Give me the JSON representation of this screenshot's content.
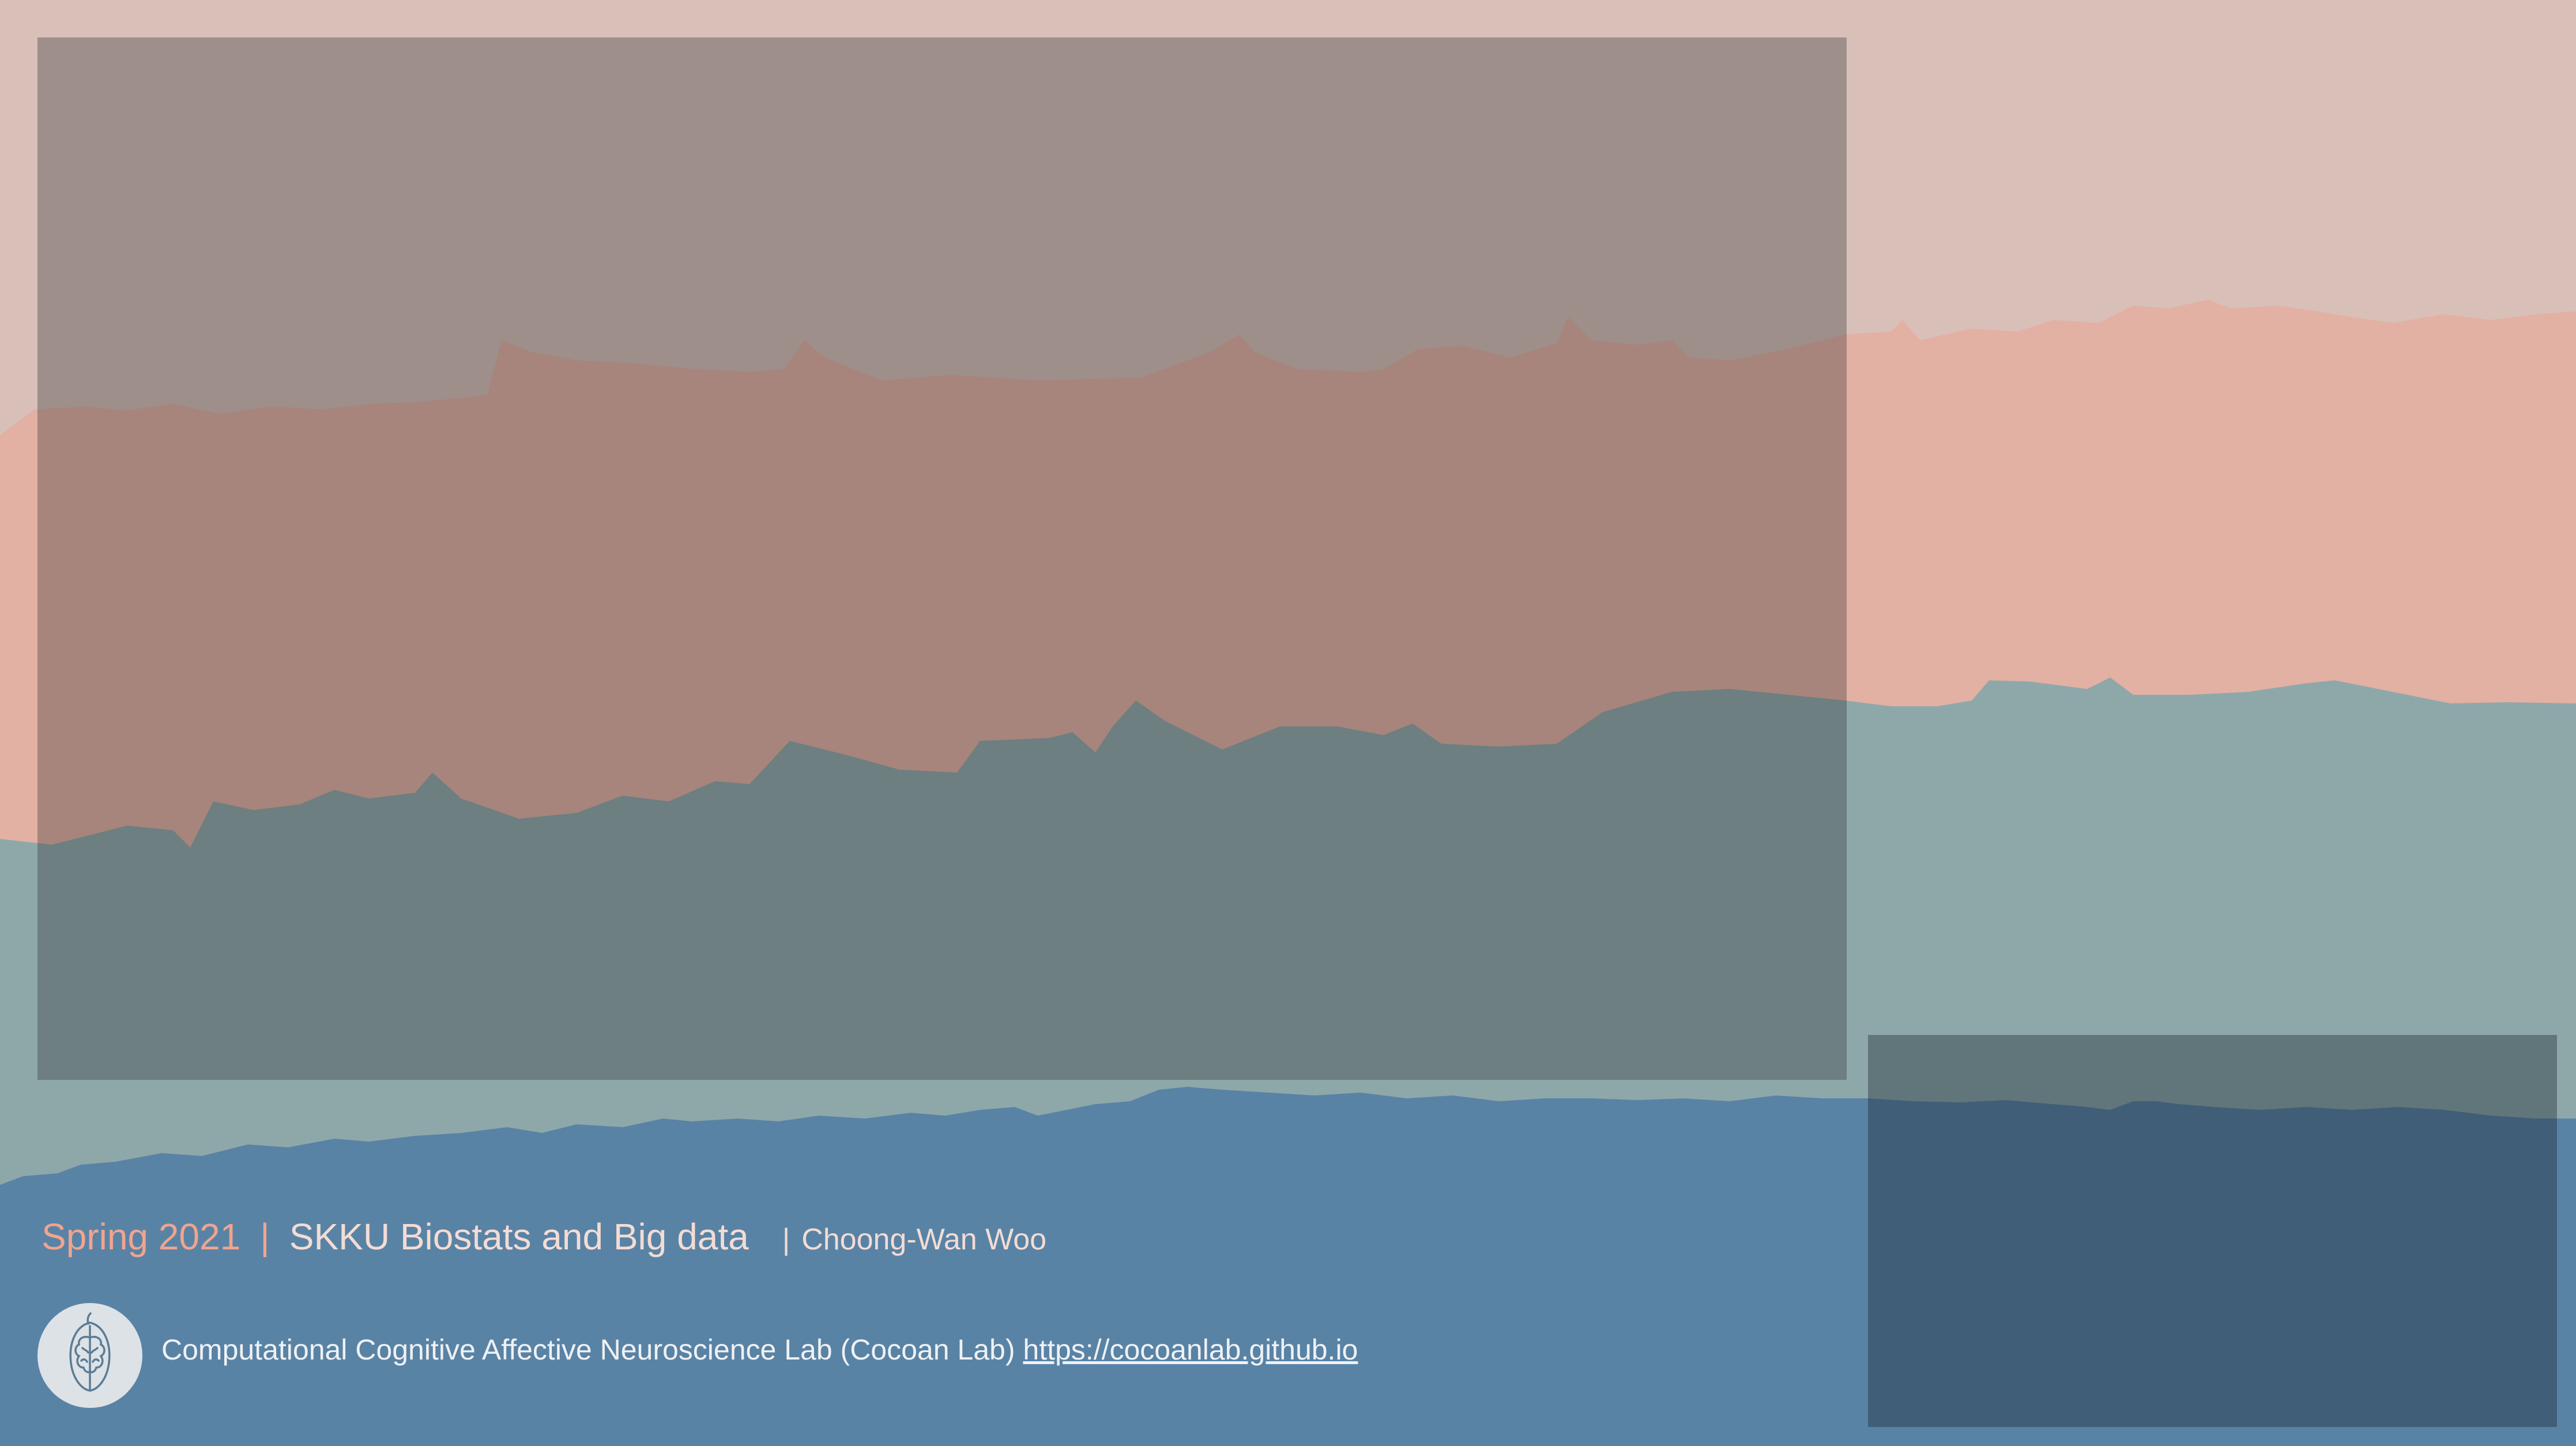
{
  "footer": {
    "semester": "Spring 2021",
    "separator": "|",
    "course": "SKKU Biostats and Big data",
    "author_separator": "|",
    "author": "Choong-Wan Woo",
    "lab_name": "Computational Cognitive Affective Neuroscience Lab (Cocoan Lab)",
    "lab_url": "https://cocoanlab.github.io"
  },
  "logo": {
    "icon": "brain-seed-icon"
  },
  "colors": {
    "sky": "#d8c0b8",
    "salmon_band": "#e3b0a4",
    "teal_band": "#8ea8aa",
    "blue_band": "#5983a5",
    "accent": "#f0a48f"
  }
}
